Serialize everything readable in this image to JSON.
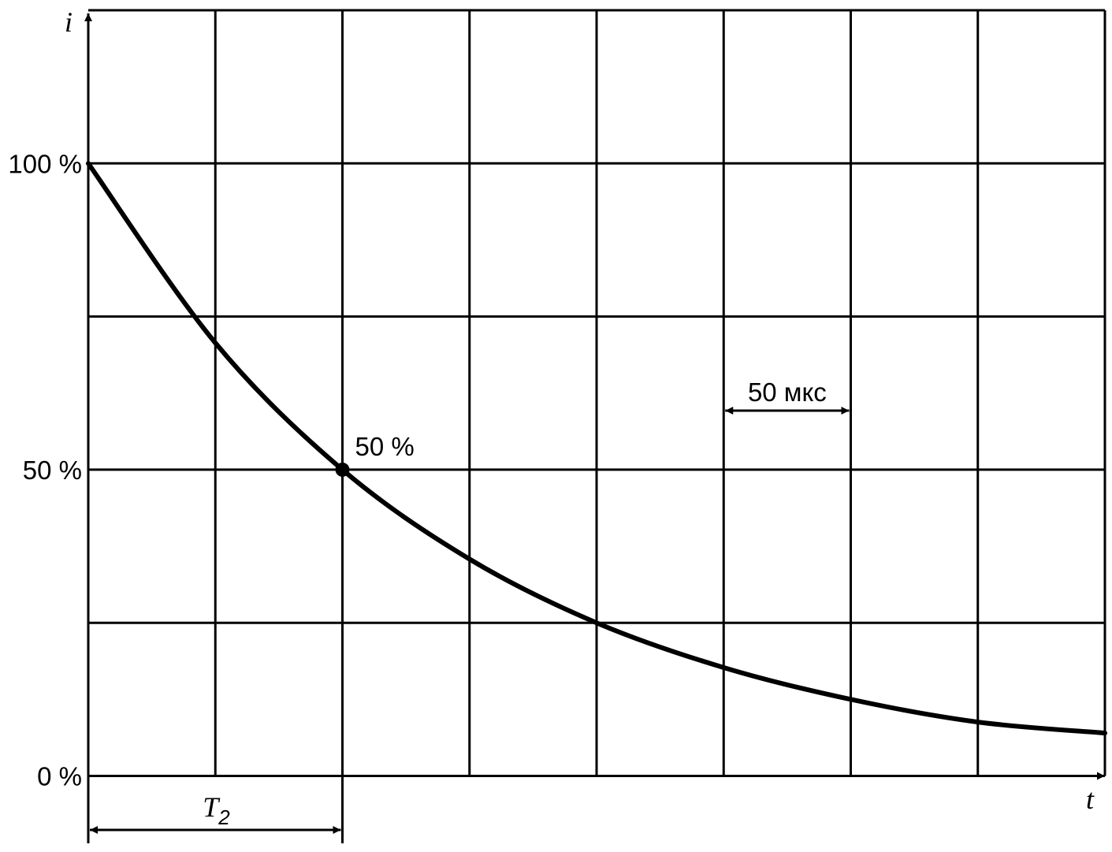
{
  "chart_data": {
    "type": "line",
    "y_axis_label": "i",
    "x_axis_label": "t",
    "y_ticks": [
      {
        "value": 0,
        "label": "0 %"
      },
      {
        "value": 50,
        "label": "50 %"
      },
      {
        "value": 100,
        "label": "100 %"
      }
    ],
    "x_grid_step_us": 50,
    "xlim_us": [
      0,
      400
    ],
    "ylim": [
      -11,
      125
    ],
    "series": [
      {
        "x_us": [
          0,
          50,
          100,
          150,
          200,
          250,
          300,
          350,
          400
        ],
        "values": [
          100,
          70.7,
          50,
          35.4,
          25,
          17.7,
          12.5,
          8.8,
          7
        ]
      }
    ],
    "half_point": {
      "x_us": 100,
      "value": 50,
      "label": "50 %"
    },
    "dimension_t2": {
      "from_us": 0,
      "to_us": 100,
      "label_main": "T",
      "label_sub": "2"
    },
    "scale_marker": {
      "from_us": 250,
      "to_us": 300,
      "label": "50 мкс"
    },
    "colors": {
      "line": "#000000",
      "grid": "#000000",
      "background": "#ffffff"
    }
  }
}
